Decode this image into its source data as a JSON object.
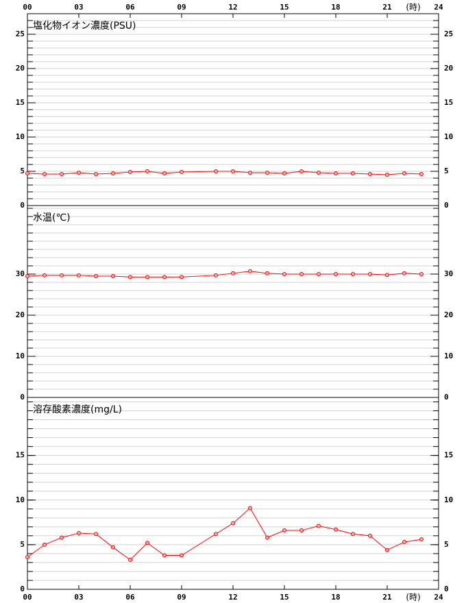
{
  "chart_data": [
    {
      "type": "line",
      "title": "塩化物イオン濃度(PSU)",
      "x": [
        0,
        1,
        2,
        3,
        4,
        5,
        6,
        7,
        8,
        9,
        11,
        12,
        13,
        14,
        15,
        16,
        17,
        18,
        19,
        20,
        21,
        22,
        23
      ],
      "xlim": [
        0,
        24
      ],
      "xticks": [
        {
          "value": 0,
          "label": "00"
        },
        {
          "value": 3,
          "label": "03"
        },
        {
          "value": 6,
          "label": "06"
        },
        {
          "value": 9,
          "label": "09"
        },
        {
          "value": 12,
          "label": "12"
        },
        {
          "value": 15,
          "label": "15"
        },
        {
          "value": 18,
          "label": "18"
        },
        {
          "value": 21,
          "label": "21"
        },
        {
          "value": 24,
          "label": "24"
        }
      ],
      "x_label": "(時)",
      "x_axis_side": "top",
      "ylim": [
        0,
        28
      ],
      "yticks": [
        0,
        5,
        10,
        15,
        20,
        25
      ],
      "minor_grid_step": 1,
      "series": [
        {
          "color": "#ff0000",
          "values": [
            4.7,
            4.6,
            4.6,
            4.8,
            4.6,
            4.7,
            4.9,
            5.0,
            4.7,
            4.9,
            5.0,
            5.0,
            4.8,
            4.8,
            4.7,
            5.0,
            4.8,
            4.7,
            4.7,
            4.6,
            4.5,
            4.7,
            4.6
          ]
        }
      ]
    },
    {
      "type": "line",
      "title": "水温(℃)",
      "x": [
        0,
        1,
        2,
        3,
        4,
        5,
        6,
        7,
        8,
        9,
        11,
        12,
        13,
        14,
        15,
        16,
        17,
        18,
        19,
        20,
        21,
        22,
        23
      ],
      "xlim": [
        0,
        24
      ],
      "ylim": [
        0,
        46.67
      ],
      "yticks": [
        0,
        10,
        20,
        30
      ],
      "minor_grid_step": 2,
      "series": [
        {
          "color": "#ff0000",
          "values": [
            29.5,
            29.7,
            29.7,
            29.7,
            29.5,
            29.5,
            29.3,
            29.3,
            29.3,
            29.3,
            29.7,
            30.2,
            30.7,
            30.2,
            30.0,
            30.0,
            30.0,
            30.0,
            30.0,
            30.0,
            29.8,
            30.2,
            30.0
          ]
        }
      ]
    },
    {
      "type": "line",
      "title": "溶存酸素濃度(mg/L)",
      "x": [
        0,
        1,
        2,
        3,
        4,
        5,
        6,
        7,
        8,
        9,
        11,
        12,
        13,
        14,
        15,
        16,
        17,
        18,
        19,
        20,
        21,
        22,
        23
      ],
      "xlim": [
        0,
        24
      ],
      "xticks": [
        {
          "value": 0,
          "label": "00"
        },
        {
          "value": 3,
          "label": "03"
        },
        {
          "value": 6,
          "label": "06"
        },
        {
          "value": 9,
          "label": "09"
        },
        {
          "value": 12,
          "label": "12"
        },
        {
          "value": 15,
          "label": "15"
        },
        {
          "value": 18,
          "label": "18"
        },
        {
          "value": 21,
          "label": "21"
        },
        {
          "value": 24,
          "label": "24"
        }
      ],
      "x_label": "(時)",
      "x_axis_side": "bottom",
      "ylim": [
        0,
        21.5
      ],
      "yticks": [
        0,
        5,
        10,
        15
      ],
      "minor_grid_step": 1,
      "series": [
        {
          "color": "#ff0000",
          "values": [
            3.6,
            5.0,
            5.8,
            6.3,
            6.2,
            4.7,
            3.3,
            5.2,
            3.8,
            3.8,
            6.2,
            7.4,
            9.1,
            5.8,
            6.6,
            6.6,
            7.1,
            6.7,
            6.2,
            6.0,
            4.4,
            5.3,
            5.6
          ]
        }
      ]
    }
  ]
}
